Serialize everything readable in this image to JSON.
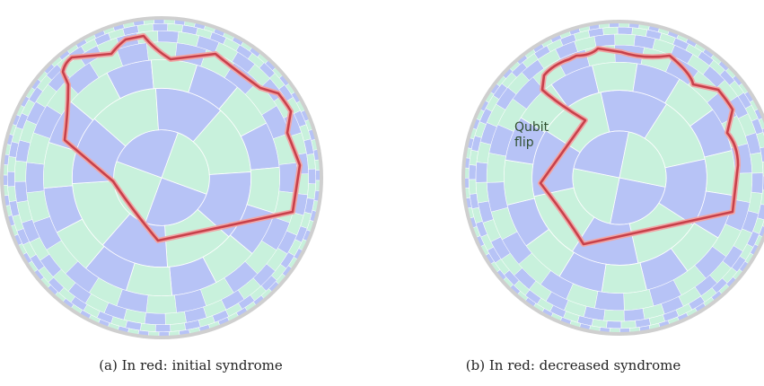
{
  "colors": {
    "blue_face": "#b7c3f6",
    "green_face": "#c8f1dc",
    "boundary": "#cfcfcf",
    "syndrome": "#c8414b",
    "syndrome_glow": "#f1a5a5",
    "edge": "#ffffff"
  },
  "panels": [
    {
      "caption": "(a) In red: initial syndrome",
      "annotation_line1": "",
      "annotation_line2": ""
    },
    {
      "caption": "(b) In red: decreased syndrome",
      "annotation_line1": "Qubit",
      "annotation_line2": "flip"
    }
  ]
}
